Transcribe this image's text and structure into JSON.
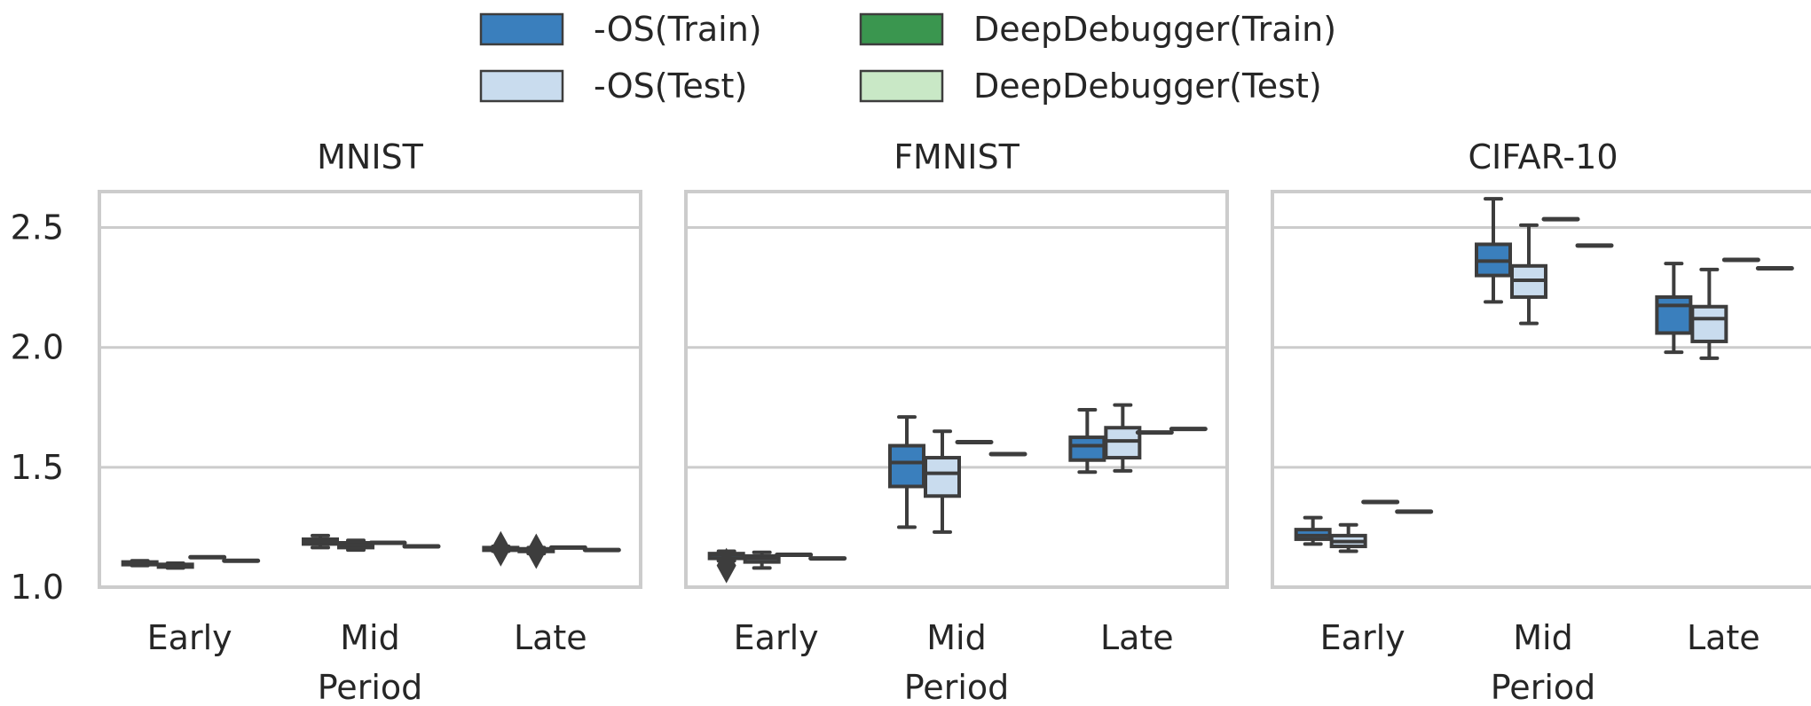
{
  "chart_data": {
    "type": "box",
    "legend": {
      "placement": "top-center",
      "entries": [
        {
          "label": "-OS(Train)",
          "color": "#3a7fbd"
        },
        {
          "label": "DeepDebugger(Train)",
          "color": "#3a964f"
        },
        {
          "label": "-OS(Test)",
          "color": "#c9dcee"
        },
        {
          "label": "DeepDebugger(Test)",
          "color": "#c9e8c6"
        }
      ]
    },
    "xlabel": "Period",
    "ylim": [
      1.0,
      2.65
    ],
    "yticks": [
      1.0,
      1.5,
      2.0,
      2.5
    ],
    "ytick_labels": [
      "1.0",
      "1.5",
      "2.0",
      "2.5"
    ],
    "categories": [
      "Early",
      "Mid",
      "Late"
    ],
    "series_order": [
      "os_train",
      "os_test",
      "dd_train",
      "dd_test"
    ],
    "panels": [
      {
        "title": "MNIST",
        "groups": [
          {
            "os_train": [
              1.09,
              1.095,
              1.1,
              1.105,
              1.11
            ],
            "os_test": [
              1.08,
              1.085,
              1.09,
              1.095,
              1.1
            ],
            "dd_train": [
              1.125,
              1.125,
              1.125,
              1.125,
              1.125
            ],
            "dd_test": [
              1.11,
              1.11,
              1.11,
              1.11,
              1.11
            ]
          },
          {
            "os_train": [
              1.165,
              1.18,
              1.19,
              1.2,
              1.215
            ],
            "os_test": [
              1.155,
              1.165,
              1.175,
              1.185,
              1.195
            ],
            "dd_train": [
              1.185,
              1.185,
              1.185,
              1.185,
              1.185
            ],
            "dd_test": [
              1.17,
              1.17,
              1.17,
              1.17,
              1.17
            ],
            "outliers": {
              "os_train": [],
              "os_test": []
            }
          },
          {
            "os_train": [
              1.15,
              1.155,
              1.16,
              1.165,
              1.17
            ],
            "os_test": [
              1.14,
              1.15,
              1.155,
              1.16,
              1.165
            ],
            "dd_train": [
              1.165,
              1.165,
              1.165,
              1.165,
              1.165
            ],
            "dd_test": [
              1.155,
              1.155,
              1.155,
              1.155,
              1.155
            ],
            "outliers": {
              "os_train": [
                1.16
              ],
              "os_test": [
                1.15
              ]
            }
          }
        ]
      },
      {
        "title": "FMNIST",
        "groups": [
          {
            "os_train": [
              1.11,
              1.12,
              1.135,
              1.14,
              1.15
            ],
            "os_test": [
              1.08,
              1.105,
              1.12,
              1.13,
              1.145
            ],
            "dd_train": [
              1.135,
              1.135,
              1.135,
              1.135,
              1.135
            ],
            "dd_test": [
              1.12,
              1.12,
              1.12,
              1.12,
              1.12
            ],
            "outliers": {
              "os_train": [
                1.09
              ],
              "os_test": []
            }
          },
          {
            "os_train": [
              1.25,
              1.42,
              1.52,
              1.59,
              1.71
            ],
            "os_test": [
              1.23,
              1.38,
              1.475,
              1.54,
              1.65
            ],
            "dd_train": [
              1.605,
              1.605,
              1.605,
              1.605,
              1.605
            ],
            "dd_test": [
              1.555,
              1.555,
              1.555,
              1.555,
              1.555
            ]
          },
          {
            "os_train": [
              1.48,
              1.53,
              1.59,
              1.625,
              1.74
            ],
            "os_test": [
              1.485,
              1.54,
              1.61,
              1.665,
              1.76
            ],
            "dd_train": [
              1.645,
              1.645,
              1.645,
              1.645,
              1.645
            ],
            "dd_test": [
              1.66,
              1.66,
              1.66,
              1.66,
              1.66
            ]
          }
        ]
      },
      {
        "title": "CIFAR-10",
        "groups": [
          {
            "os_train": [
              1.18,
              1.2,
              1.215,
              1.24,
              1.29
            ],
            "os_test": [
              1.15,
              1.17,
              1.19,
              1.215,
              1.26
            ],
            "dd_train": [
              1.355,
              1.355,
              1.355,
              1.355,
              1.355
            ],
            "dd_test": [
              1.315,
              1.315,
              1.315,
              1.315,
              1.315
            ]
          },
          {
            "os_train": [
              2.19,
              2.3,
              2.36,
              2.43,
              2.62
            ],
            "os_test": [
              2.1,
              2.21,
              2.28,
              2.34,
              2.51
            ],
            "dd_train": [
              2.535,
              2.535,
              2.535,
              2.535,
              2.535
            ],
            "dd_test": [
              2.425,
              2.425,
              2.425,
              2.425,
              2.425
            ]
          },
          {
            "os_train": [
              1.98,
              2.06,
              2.175,
              2.21,
              2.35
            ],
            "os_test": [
              1.955,
              2.025,
              2.12,
              2.17,
              2.325
            ],
            "dd_train": [
              2.365,
              2.365,
              2.365,
              2.365,
              2.365
            ],
            "dd_test": [
              2.33,
              2.33,
              2.33,
              2.33,
              2.33
            ]
          }
        ]
      }
    ]
  }
}
